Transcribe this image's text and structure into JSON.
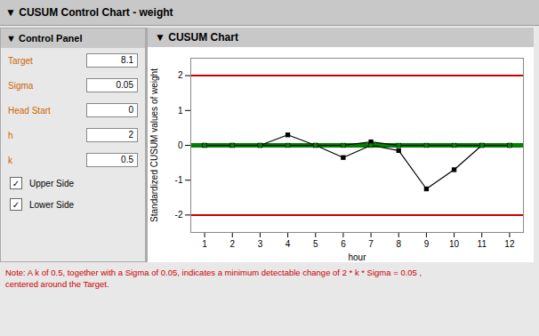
{
  "chart_data": {
    "type": "line",
    "title": "▼ CUSUM Control Chart - weight",
    "subtitle": "▼ CUSUM Chart",
    "xlabel": "hour",
    "ylabel": "Standardized CUSUM values of weight",
    "x": [
      1,
      2,
      3,
      4,
      5,
      6,
      7,
      8,
      9,
      10,
      11,
      12
    ],
    "series": [
      {
        "type": "line",
        "color": "#000000",
        "marker": "square",
        "values": [
          0,
          0,
          0,
          0.3,
          0,
          0,
          0.1,
          0,
          0,
          0,
          0,
          0
        ]
      },
      {
        "type": "line",
        "color": "#000000",
        "marker": "square",
        "values": [
          0,
          0,
          0,
          0,
          0,
          -0.35,
          0,
          -0.15,
          -1.25,
          -0.7,
          0,
          0
        ]
      },
      {
        "type": "scatter",
        "color": "#008000",
        "marker": "circle",
        "values": [
          0,
          0,
          0,
          0,
          0,
          0,
          0,
          0,
          0,
          0,
          0,
          0
        ]
      }
    ],
    "reference_lines": [
      {
        "value": 2,
        "color": "#cc0000"
      },
      {
        "value": -2,
        "color": "#cc0000"
      },
      {
        "value": 0,
        "color": "#008000"
      }
    ],
    "xlim": [
      0.5,
      12.5
    ],
    "xticks": [
      1,
      2,
      3,
      4,
      5,
      6,
      7,
      8,
      9,
      10,
      11,
      12
    ],
    "ylim": [
      -2.5,
      2.5
    ],
    "yticks": [
      -2,
      -1,
      0,
      1,
      2
    ],
    "grid": false,
    "panel": {
      "title": "▼ Control Panel",
      "label_color": "#cc6600",
      "params": [
        {
          "label": "Target",
          "value": "8.1"
        },
        {
          "label": "Sigma",
          "value": "0.05"
        },
        {
          "label": "Head Start",
          "value": "0"
        },
        {
          "label": "h",
          "value": "2"
        },
        {
          "label": "k",
          "value": "0.5"
        }
      ],
      "check_mark": "✓",
      "checkboxes": [
        "Upper Side",
        "Lower Side"
      ]
    },
    "note": {
      "text": "Note: A k of 0.5, together with a Sigma of 0.05, indicates a minimum detectable change of 2 * k * Sigma = 0.05 ,\ncentered around the Target.",
      "color": "#cc0000"
    }
  }
}
